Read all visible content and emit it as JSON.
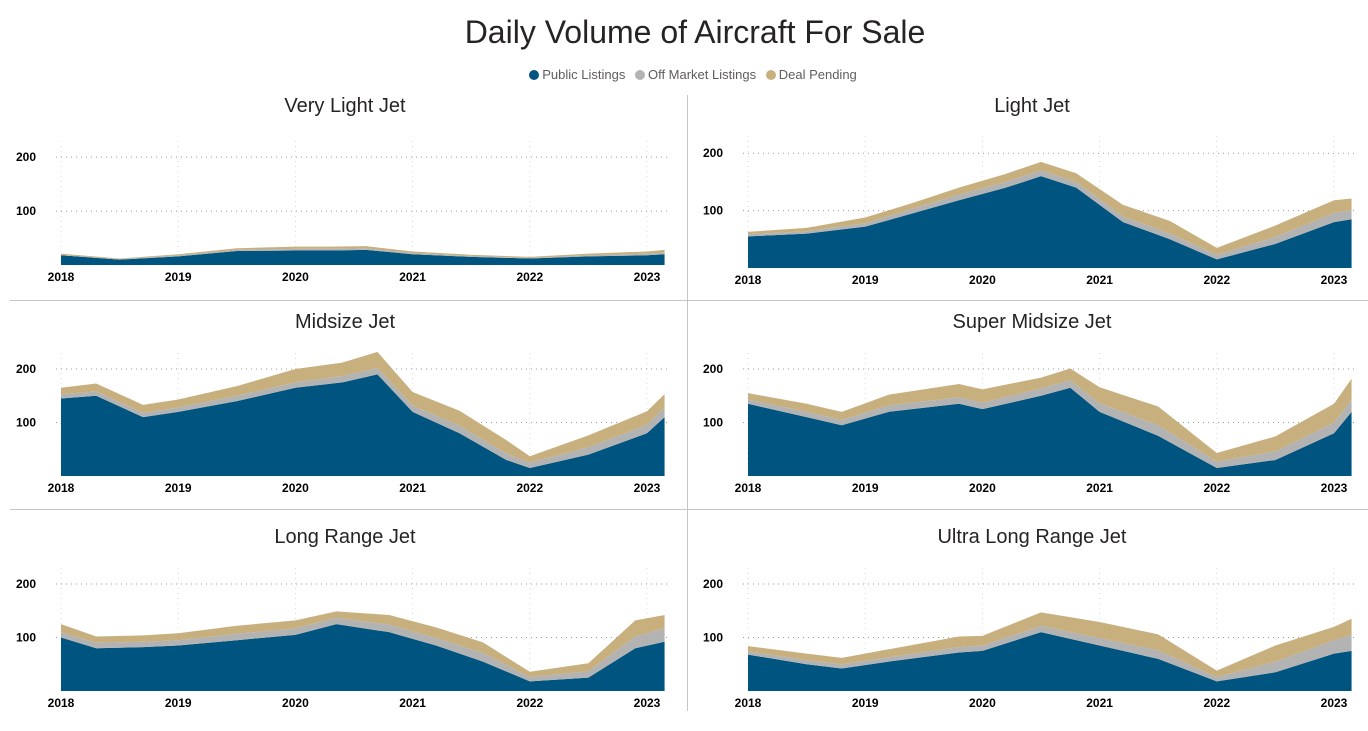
{
  "header": {
    "title": "Daily Volume of Aircraft For Sale"
  },
  "legend": [
    {
      "label": "Public Listings",
      "color": "#005480"
    },
    {
      "label": "Off Market Listings",
      "color": "#b3b3b3"
    },
    {
      "label": "Deal Pending",
      "color": "#c8b07e"
    }
  ],
  "chart_data": [
    {
      "type": "area",
      "title": "Very Light Jet",
      "x": [
        2018.0,
        2018.5,
        2019.0,
        2019.5,
        2020.0,
        2020.3,
        2020.6,
        2021.0,
        2021.5,
        2022.0,
        2022.5,
        2023.0,
        2023.15
      ],
      "series": [
        {
          "name": "Public Listings",
          "values": [
            18,
            10,
            16,
            26,
            27,
            27,
            28,
            20,
            15,
            12,
            16,
            18,
            20
          ]
        },
        {
          "name": "Off Market Listings",
          "values": [
            1,
            1,
            2,
            2,
            3,
            3,
            3,
            2,
            2,
            1,
            2,
            3,
            3
          ]
        },
        {
          "name": "Deal Pending",
          "values": [
            2,
            1,
            2,
            3,
            4,
            4,
            4,
            3,
            2,
            2,
            3,
            4,
            5
          ]
        }
      ],
      "xticks": [
        "2018",
        "2019",
        "2020",
        "2021",
        "2022",
        "2023"
      ],
      "yticks": [
        100,
        200
      ],
      "ylim": [
        0,
        230
      ]
    },
    {
      "type": "area",
      "title": "Light Jet",
      "x": [
        2018.0,
        2018.5,
        2019.0,
        2019.4,
        2019.8,
        2020.2,
        2020.5,
        2020.8,
        2021.2,
        2021.6,
        2022.0,
        2022.5,
        2023.0,
        2023.15
      ],
      "series": [
        {
          "name": "Public Listings",
          "values": [
            55,
            60,
            72,
            95,
            118,
            140,
            160,
            140,
            80,
            50,
            15,
            42,
            80,
            85
          ]
        },
        {
          "name": "Off Market Listings",
          "values": [
            4,
            4,
            6,
            8,
            10,
            10,
            10,
            10,
            10,
            10,
            8,
            12,
            16,
            16
          ]
        },
        {
          "name": "Deal Pending",
          "values": [
            4,
            6,
            10,
            10,
            12,
            14,
            15,
            15,
            20,
            22,
            12,
            20,
            22,
            20
          ]
        }
      ],
      "xticks": [
        "2018",
        "2019",
        "2020",
        "2021",
        "2022",
        "2023"
      ],
      "yticks": [
        100,
        200
      ],
      "ylim": [
        0,
        230
      ]
    },
    {
      "type": "area",
      "title": "Midsize Jet",
      "x": [
        2018.0,
        2018.3,
        2018.7,
        2019.0,
        2019.5,
        2020.0,
        2020.4,
        2020.7,
        2021.0,
        2021.4,
        2021.8,
        2022.0,
        2022.5,
        2023.0,
        2023.15
      ],
      "series": [
        {
          "name": "Public Listings",
          "values": [
            145,
            150,
            110,
            120,
            140,
            165,
            175,
            190,
            120,
            80,
            30,
            15,
            40,
            80,
            110
          ]
        },
        {
          "name": "Off Market Listings",
          "values": [
            8,
            8,
            8,
            8,
            10,
            10,
            12,
            12,
            12,
            14,
            12,
            10,
            14,
            16,
            18
          ]
        },
        {
          "name": "Deal Pending",
          "values": [
            12,
            15,
            15,
            15,
            18,
            25,
            25,
            30,
            25,
            28,
            25,
            12,
            22,
            25,
            25
          ]
        }
      ],
      "xticks": [
        "2018",
        "2019",
        "2020",
        "2021",
        "2022",
        "2023"
      ],
      "yticks": [
        100,
        200
      ],
      "ylim": [
        0,
        230
      ]
    },
    {
      "type": "area",
      "title": "Super Midsize Jet",
      "x": [
        2018.0,
        2018.5,
        2018.8,
        2019.2,
        2019.8,
        2020.0,
        2020.5,
        2020.75,
        2021.0,
        2021.5,
        2022.0,
        2022.5,
        2023.0,
        2023.15
      ],
      "series": [
        {
          "name": "Public Listings",
          "values": [
            135,
            110,
            95,
            120,
            135,
            125,
            150,
            165,
            120,
            75,
            15,
            30,
            80,
            120
          ]
        },
        {
          "name": "Off Market Listings",
          "values": [
            8,
            10,
            10,
            12,
            12,
            12,
            14,
            14,
            16,
            20,
            12,
            16,
            20,
            22
          ]
        },
        {
          "name": "Deal Pending",
          "values": [
            12,
            15,
            15,
            20,
            25,
            25,
            20,
            22,
            30,
            35,
            16,
            28,
            35,
            40
          ]
        }
      ],
      "xticks": [
        "2018",
        "2019",
        "2020",
        "2021",
        "2022",
        "2023"
      ],
      "yticks": [
        100,
        200
      ],
      "ylim": [
        0,
        230
      ]
    },
    {
      "type": "area",
      "title": "Long Range Jet",
      "x": [
        2018.0,
        2018.3,
        2018.7,
        2019.0,
        2019.5,
        2020.0,
        2020.35,
        2020.8,
        2021.2,
        2021.6,
        2022.0,
        2022.5,
        2022.9,
        2023.15
      ],
      "series": [
        {
          "name": "Public Listings",
          "values": [
            100,
            80,
            82,
            85,
            95,
            105,
            125,
            110,
            85,
            55,
            18,
            25,
            80,
            92
          ]
        },
        {
          "name": "Off Market Listings",
          "values": [
            10,
            10,
            10,
            10,
            12,
            12,
            12,
            14,
            14,
            16,
            8,
            12,
            22,
            25
          ]
        },
        {
          "name": "Deal Pending",
          "values": [
            15,
            12,
            12,
            13,
            15,
            15,
            12,
            18,
            20,
            20,
            10,
            15,
            30,
            25
          ]
        }
      ],
      "xticks": [
        "2018",
        "2019",
        "2020",
        "2021",
        "2022",
        "2023"
      ],
      "yticks": [
        100,
        200
      ],
      "ylim": [
        0,
        230
      ]
    },
    {
      "type": "area",
      "title": "Ultra Long Range Jet",
      "x": [
        2018.0,
        2018.5,
        2018.8,
        2019.2,
        2019.8,
        2020.0,
        2020.5,
        2021.0,
        2021.5,
        2022.0,
        2022.5,
        2023.0,
        2023.15
      ],
      "series": [
        {
          "name": "Public Listings",
          "values": [
            68,
            50,
            42,
            55,
            72,
            75,
            110,
            85,
            60,
            18,
            35,
            70,
            75
          ]
        },
        {
          "name": "Off Market Listings",
          "values": [
            6,
            8,
            8,
            8,
            10,
            10,
            12,
            14,
            16,
            8,
            20,
            25,
            30
          ]
        },
        {
          "name": "Deal Pending",
          "values": [
            10,
            12,
            12,
            15,
            20,
            18,
            25,
            30,
            30,
            12,
            30,
            25,
            30
          ]
        }
      ],
      "xticks": [
        "2018",
        "2019",
        "2020",
        "2021",
        "2022",
        "2023"
      ],
      "yticks": [
        100,
        200
      ],
      "ylim": [
        0,
        230
      ]
    }
  ]
}
